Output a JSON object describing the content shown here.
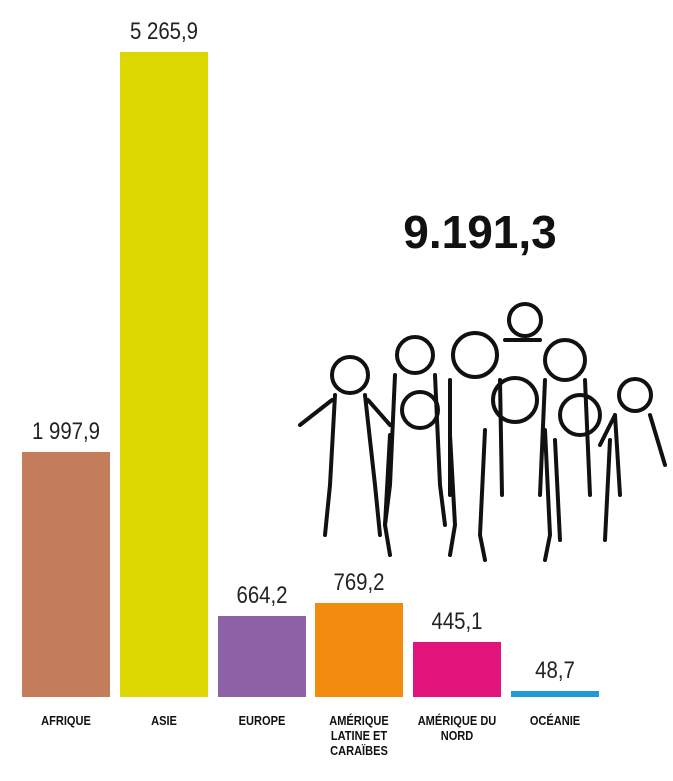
{
  "chart_data": {
    "type": "bar",
    "annotation": "9.191,3",
    "categories": [
      "AFRIQUE",
      "ASIE",
      "EUROPE",
      "AMÉRIQUE LATINE ET CARAÏBES",
      "AMÉRIQUE DU NORD",
      "OCÉANIE"
    ],
    "values": [
      1997.9,
      5265.9,
      664.2,
      769.2,
      445.1,
      48.7
    ],
    "value_labels": [
      "1 997,9",
      "5 265,9",
      "664,2",
      "769,2",
      "445,1",
      "48,7"
    ],
    "colors": [
      "#c47d5a",
      "#dcd700",
      "#8e62a6",
      "#f28c0f",
      "#e0147b",
      "#1e9ad6"
    ]
  }
}
